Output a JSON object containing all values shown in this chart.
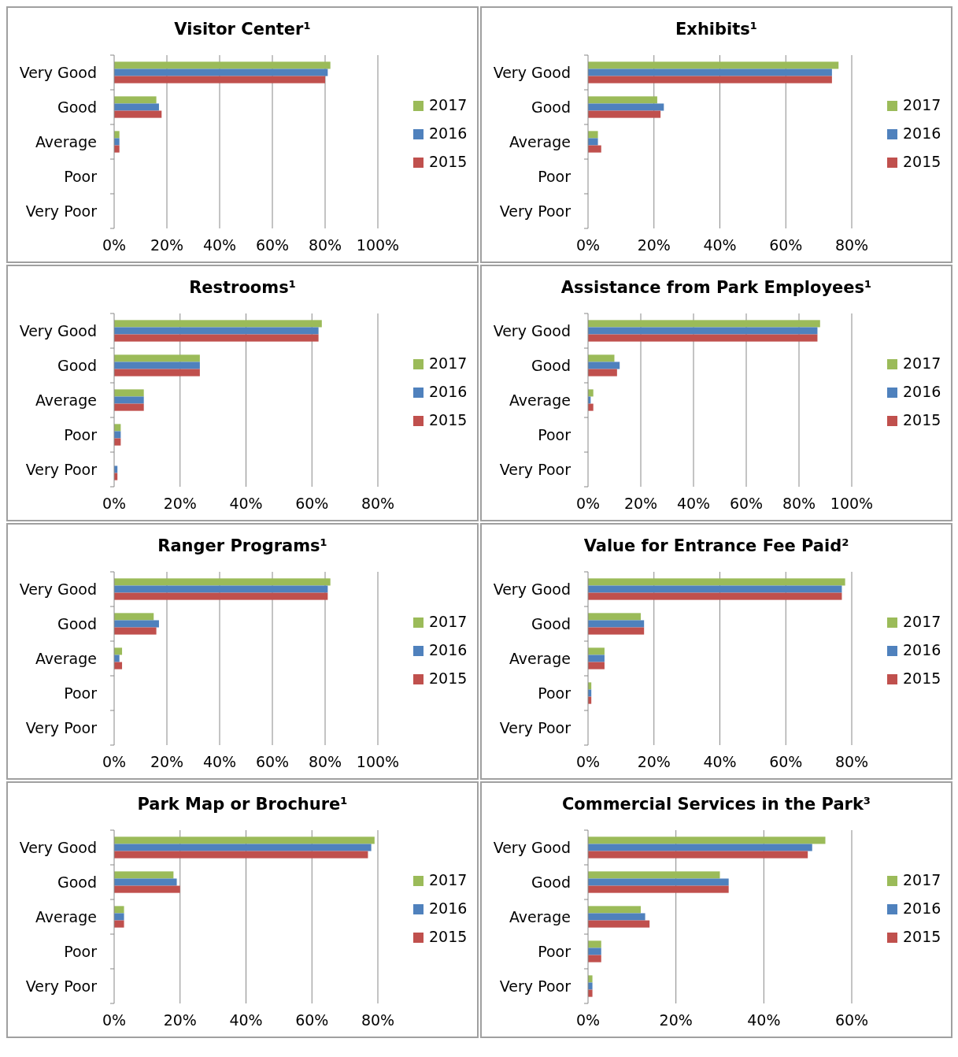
{
  "chart_data": [
    {
      "type": "bar",
      "orientation": "horizontal",
      "title": "Visitor Center¹",
      "categories": [
        "Very Good",
        "Good",
        "Average",
        "Poor",
        "Very Poor"
      ],
      "xlim": [
        0,
        100
      ],
      "xticks": [
        {
          "value": 0,
          "label": "0%"
        },
        {
          "value": 20,
          "label": "20%"
        },
        {
          "value": 40,
          "label": "40%"
        },
        {
          "value": 60,
          "label": "60%"
        },
        {
          "value": 80,
          "label": "80%"
        },
        {
          "value": 100,
          "label": "100%"
        }
      ],
      "grid": "x",
      "legend": "right",
      "series": [
        {
          "name": "2017",
          "color": "#9bbb59",
          "values": [
            82,
            16,
            2,
            0,
            0
          ]
        },
        {
          "name": "2016",
          "color": "#4f81bd",
          "values": [
            81,
            17,
            2,
            0,
            0
          ]
        },
        {
          "name": "2015",
          "color": "#c0504d",
          "values": [
            80,
            18,
            2,
            0,
            0
          ]
        }
      ]
    },
    {
      "type": "bar",
      "orientation": "horizontal",
      "title": "Exhibits¹",
      "categories": [
        "Very Good",
        "Good",
        "Average",
        "Poor",
        "Very Poor"
      ],
      "xlim": [
        0,
        80
      ],
      "xticks": [
        {
          "value": 0,
          "label": "0%"
        },
        {
          "value": 20,
          "label": "20%"
        },
        {
          "value": 40,
          "label": "40%"
        },
        {
          "value": 60,
          "label": "60%"
        },
        {
          "value": 80,
          "label": "80%"
        }
      ],
      "grid": "x",
      "legend": "right",
      "series": [
        {
          "name": "2017",
          "color": "#9bbb59",
          "values": [
            76,
            21,
            3,
            0,
            0
          ]
        },
        {
          "name": "2016",
          "color": "#4f81bd",
          "values": [
            74,
            23,
            3,
            0,
            0
          ]
        },
        {
          "name": "2015",
          "color": "#c0504d",
          "values": [
            74,
            22,
            4,
            0,
            0
          ]
        }
      ]
    },
    {
      "type": "bar",
      "orientation": "horizontal",
      "title": "Restrooms¹",
      "categories": [
        "Very Good",
        "Good",
        "Average",
        "Poor",
        "Very Poor"
      ],
      "xlim": [
        0,
        80
      ],
      "xticks": [
        {
          "value": 0,
          "label": "0%"
        },
        {
          "value": 20,
          "label": "20%"
        },
        {
          "value": 40,
          "label": "40%"
        },
        {
          "value": 60,
          "label": "60%"
        },
        {
          "value": 80,
          "label": "80%"
        }
      ],
      "grid": "x",
      "legend": "right",
      "series": [
        {
          "name": "2017",
          "color": "#9bbb59",
          "values": [
            63,
            26,
            9,
            2,
            0
          ]
        },
        {
          "name": "2016",
          "color": "#4f81bd",
          "values": [
            62,
            26,
            9,
            2,
            1
          ]
        },
        {
          "name": "2015",
          "color": "#c0504d",
          "values": [
            62,
            26,
            9,
            2,
            1
          ]
        }
      ]
    },
    {
      "type": "bar",
      "orientation": "horizontal",
      "title": "Assistance from Park Employees¹",
      "categories": [
        "Very Good",
        "Good",
        "Average",
        "Poor",
        "Very Poor"
      ],
      "xlim": [
        0,
        100
      ],
      "xticks": [
        {
          "value": 0,
          "label": "0%"
        },
        {
          "value": 20,
          "label": "20%"
        },
        {
          "value": 40,
          "label": "40%"
        },
        {
          "value": 60,
          "label": "60%"
        },
        {
          "value": 80,
          "label": "80%"
        },
        {
          "value": 100,
          "label": "100%"
        }
      ],
      "grid": "x",
      "legend": "right",
      "series": [
        {
          "name": "2017",
          "color": "#9bbb59",
          "values": [
            88,
            10,
            2,
            0,
            0
          ]
        },
        {
          "name": "2016",
          "color": "#4f81bd",
          "values": [
            87,
            12,
            1,
            0,
            0
          ]
        },
        {
          "name": "2015",
          "color": "#c0504d",
          "values": [
            87,
            11,
            2,
            0,
            0
          ]
        }
      ]
    },
    {
      "type": "bar",
      "orientation": "horizontal",
      "title": "Ranger Programs¹",
      "categories": [
        "Very Good",
        "Good",
        "Average",
        "Poor",
        "Very Poor"
      ],
      "xlim": [
        0,
        100
      ],
      "xticks": [
        {
          "value": 0,
          "label": "0%"
        },
        {
          "value": 20,
          "label": "20%"
        },
        {
          "value": 40,
          "label": "40%"
        },
        {
          "value": 60,
          "label": "60%"
        },
        {
          "value": 80,
          "label": "80%"
        },
        {
          "value": 100,
          "label": "100%"
        }
      ],
      "grid": "x",
      "legend": "right",
      "series": [
        {
          "name": "2017",
          "color": "#9bbb59",
          "values": [
            82,
            15,
            3,
            0,
            0
          ]
        },
        {
          "name": "2016",
          "color": "#4f81bd",
          "values": [
            81,
            17,
            2,
            0,
            0
          ]
        },
        {
          "name": "2015",
          "color": "#c0504d",
          "values": [
            81,
            16,
            3,
            0,
            0
          ]
        }
      ]
    },
    {
      "type": "bar",
      "orientation": "horizontal",
      "title": "Value for Entrance Fee Paid²",
      "categories": [
        "Very Good",
        "Good",
        "Average",
        "Poor",
        "Very Poor"
      ],
      "xlim": [
        0,
        80
      ],
      "xticks": [
        {
          "value": 0,
          "label": "0%"
        },
        {
          "value": 20,
          "label": "20%"
        },
        {
          "value": 40,
          "label": "40%"
        },
        {
          "value": 60,
          "label": "60%"
        },
        {
          "value": 80,
          "label": "80%"
        }
      ],
      "grid": "x",
      "legend": "right",
      "series": [
        {
          "name": "2017",
          "color": "#9bbb59",
          "values": [
            78,
            16,
            5,
            1,
            0
          ]
        },
        {
          "name": "2016",
          "color": "#4f81bd",
          "values": [
            77,
            17,
            5,
            1,
            0
          ]
        },
        {
          "name": "2015",
          "color": "#c0504d",
          "values": [
            77,
            17,
            5,
            1,
            0
          ]
        }
      ]
    },
    {
      "type": "bar",
      "orientation": "horizontal",
      "title": "Park Map or Brochure¹",
      "categories": [
        "Very Good",
        "Good",
        "Average",
        "Poor",
        "Very Poor"
      ],
      "xlim": [
        0,
        80
      ],
      "xticks": [
        {
          "value": 0,
          "label": "0%"
        },
        {
          "value": 20,
          "label": "20%"
        },
        {
          "value": 40,
          "label": "40%"
        },
        {
          "value": 60,
          "label": "60%"
        },
        {
          "value": 80,
          "label": "80%"
        }
      ],
      "grid": "x",
      "legend": "right",
      "series": [
        {
          "name": "2017",
          "color": "#9bbb59",
          "values": [
            79,
            18,
            3,
            0,
            0
          ]
        },
        {
          "name": "2016",
          "color": "#4f81bd",
          "values": [
            78,
            19,
            3,
            0,
            0
          ]
        },
        {
          "name": "2015",
          "color": "#c0504d",
          "values": [
            77,
            20,
            3,
            0,
            0
          ]
        }
      ]
    },
    {
      "type": "bar",
      "orientation": "horizontal",
      "title": "Commercial Services in the Park³",
      "categories": [
        "Very Good",
        "Good",
        "Average",
        "Poor",
        "Very Poor"
      ],
      "xlim": [
        0,
        60
      ],
      "xticks": [
        {
          "value": 0,
          "label": "0%"
        },
        {
          "value": 20,
          "label": "20%"
        },
        {
          "value": 40,
          "label": "40%"
        },
        {
          "value": 60,
          "label": "60%"
        }
      ],
      "grid": "x",
      "legend": "right",
      "series": [
        {
          "name": "2017",
          "color": "#9bbb59",
          "values": [
            54,
            30,
            12,
            3,
            1
          ]
        },
        {
          "name": "2016",
          "color": "#4f81bd",
          "values": [
            51,
            32,
            13,
            3,
            1
          ]
        },
        {
          "name": "2015",
          "color": "#c0504d",
          "values": [
            50,
            32,
            14,
            3,
            1
          ]
        }
      ]
    }
  ]
}
